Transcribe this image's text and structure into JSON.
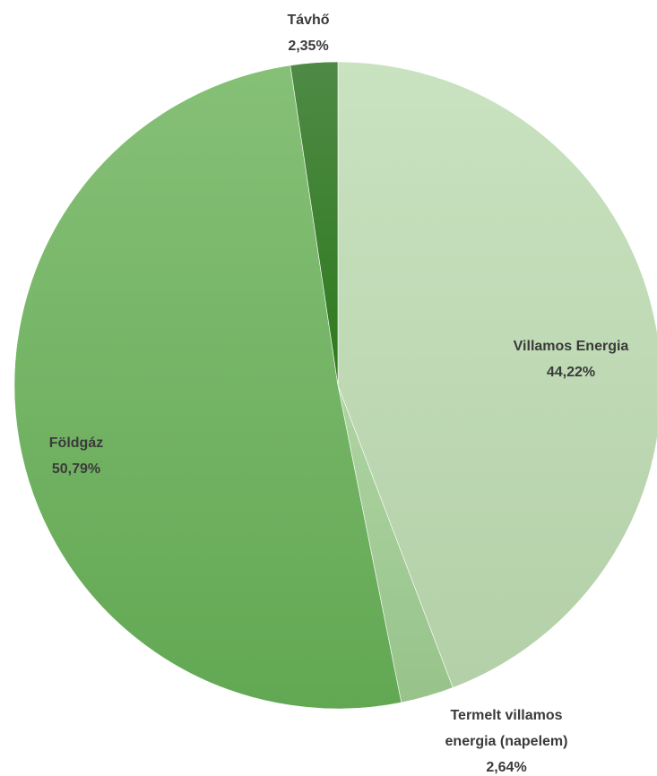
{
  "chart_data": {
    "type": "pie",
    "title": "",
    "slices": [
      {
        "label": "Villamos Energia",
        "value": 44.22,
        "display": "44,22%",
        "color": "#bcd9b2"
      },
      {
        "label": "Termelt villamos energia (napelem)",
        "value": 2.64,
        "display": "2,64%",
        "color": "#a3cc96"
      },
      {
        "label": "Földgáz",
        "value": 50.79,
        "display": "50,79%",
        "color": "#72b562"
      },
      {
        "label": "Távhő",
        "value": 2.35,
        "display": "2,35%",
        "color": "#3f7f34"
      }
    ],
    "data_labels": "label and percentage",
    "legend": "none"
  }
}
